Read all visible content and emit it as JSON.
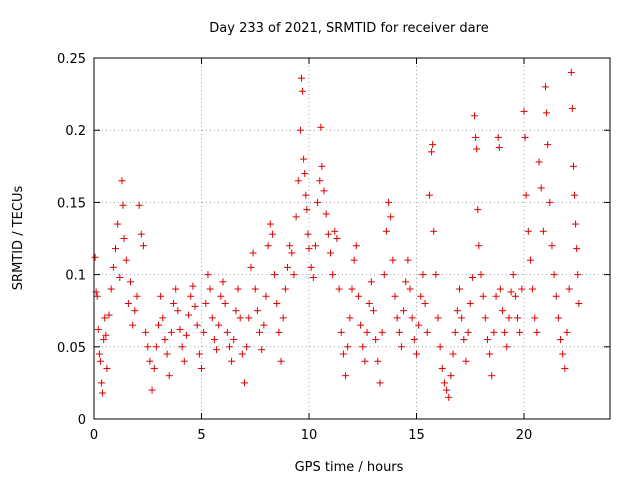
{
  "chart_data": {
    "type": "scatter",
    "title": "Day 233 of 2021, SRMTID for receiver dare",
    "xlabel": "GPS time / hours",
    "ylabel": "SRMTID / TECUs",
    "xlim": [
      0,
      24
    ],
    "ylim": [
      0,
      0.25
    ],
    "x_ticks": [
      0,
      5,
      10,
      15,
      20
    ],
    "x_tick_labels": [
      "0",
      "5",
      "10",
      "15",
      "20"
    ],
    "y_ticks": [
      0,
      0.05,
      0.1,
      0.15,
      0.2,
      0.25
    ],
    "y_tick_labels": [
      "0",
      "0.05",
      "0.1",
      "0.15",
      "0.2",
      "0.25"
    ],
    "grid": true,
    "marker": "plus",
    "series_color": "#e00000",
    "series": [
      {
        "name": "SRMTID",
        "points": [
          [
            0.05,
            0.112
          ],
          [
            0.1,
            0.088
          ],
          [
            0.15,
            0.085
          ],
          [
            0.2,
            0.062
          ],
          [
            0.25,
            0.045
          ],
          [
            0.3,
            0.04
          ],
          [
            0.35,
            0.025
          ],
          [
            0.4,
            0.018
          ],
          [
            0.45,
            0.055
          ],
          [
            0.5,
            0.07
          ],
          [
            0.55,
            0.058
          ],
          [
            0.6,
            0.035
          ],
          [
            0.7,
            0.072
          ],
          [
            0.8,
            0.09
          ],
          [
            0.9,
            0.105
          ],
          [
            1.0,
            0.118
          ],
          [
            1.1,
            0.135
          ],
          [
            1.2,
            0.098
          ],
          [
            1.3,
            0.165
          ],
          [
            1.35,
            0.148
          ],
          [
            1.4,
            0.125
          ],
          [
            1.5,
            0.11
          ],
          [
            1.6,
            0.08
          ],
          [
            1.7,
            0.095
          ],
          [
            1.8,
            0.065
          ],
          [
            1.9,
            0.075
          ],
          [
            2.0,
            0.085
          ],
          [
            2.1,
            0.148
          ],
          [
            2.2,
            0.128
          ],
          [
            2.3,
            0.12
          ],
          [
            2.4,
            0.06
          ],
          [
            2.5,
            0.05
          ],
          [
            2.6,
            0.04
          ],
          [
            2.7,
            0.02
          ],
          [
            2.8,
            0.035
          ],
          [
            2.9,
            0.05
          ],
          [
            3.0,
            0.065
          ],
          [
            3.1,
            0.085
          ],
          [
            3.2,
            0.07
          ],
          [
            3.3,
            0.055
          ],
          [
            3.4,
            0.045
          ],
          [
            3.5,
            0.03
          ],
          [
            3.6,
            0.06
          ],
          [
            3.7,
            0.08
          ],
          [
            3.8,
            0.09
          ],
          [
            3.9,
            0.075
          ],
          [
            4.0,
            0.062
          ],
          [
            4.1,
            0.05
          ],
          [
            4.2,
            0.04
          ],
          [
            4.3,
            0.058
          ],
          [
            4.4,
            0.072
          ],
          [
            4.5,
            0.085
          ],
          [
            4.6,
            0.092
          ],
          [
            4.7,
            0.078
          ],
          [
            4.8,
            0.065
          ],
          [
            4.9,
            0.045
          ],
          [
            5.0,
            0.035
          ],
          [
            5.1,
            0.06
          ],
          [
            5.2,
            0.08
          ],
          [
            5.3,
            0.1
          ],
          [
            5.4,
            0.09
          ],
          [
            5.5,
            0.07
          ],
          [
            5.6,
            0.055
          ],
          [
            5.7,
            0.048
          ],
          [
            5.8,
            0.065
          ],
          [
            5.9,
            0.085
          ],
          [
            6.0,
            0.095
          ],
          [
            6.1,
            0.08
          ],
          [
            6.2,
            0.06
          ],
          [
            6.3,
            0.05
          ],
          [
            6.4,
            0.04
          ],
          [
            6.5,
            0.055
          ],
          [
            6.6,
            0.075
          ],
          [
            6.7,
            0.09
          ],
          [
            6.8,
            0.07
          ],
          [
            6.9,
            0.045
          ],
          [
            7.0,
            0.025
          ],
          [
            7.1,
            0.05
          ],
          [
            7.2,
            0.07
          ],
          [
            7.3,
            0.105
          ],
          [
            7.4,
            0.115
          ],
          [
            7.5,
            0.09
          ],
          [
            7.6,
            0.075
          ],
          [
            7.7,
            0.06
          ],
          [
            7.8,
            0.048
          ],
          [
            7.9,
            0.065
          ],
          [
            8.0,
            0.085
          ],
          [
            8.1,
            0.12
          ],
          [
            8.2,
            0.135
          ],
          [
            8.3,
            0.128
          ],
          [
            8.4,
            0.1
          ],
          [
            8.5,
            0.08
          ],
          [
            8.6,
            0.06
          ],
          [
            8.7,
            0.04
          ],
          [
            8.8,
            0.07
          ],
          [
            8.9,
            0.09
          ],
          [
            9.0,
            0.105
          ],
          [
            9.1,
            0.12
          ],
          [
            9.2,
            0.115
          ],
          [
            9.3,
            0.1
          ],
          [
            9.4,
            0.14
          ],
          [
            9.5,
            0.165
          ],
          [
            9.6,
            0.2
          ],
          [
            9.65,
            0.236
          ],
          [
            9.7,
            0.227
          ],
          [
            9.75,
            0.18
          ],
          [
            9.8,
            0.17
          ],
          [
            9.85,
            0.155
          ],
          [
            9.9,
            0.145
          ],
          [
            9.95,
            0.128
          ],
          [
            10.0,
            0.118
          ],
          [
            10.1,
            0.105
          ],
          [
            10.2,
            0.098
          ],
          [
            10.3,
            0.12
          ],
          [
            10.4,
            0.15
          ],
          [
            10.5,
            0.165
          ],
          [
            10.55,
            0.202
          ],
          [
            10.6,
            0.175
          ],
          [
            10.7,
            0.158
          ],
          [
            10.8,
            0.142
          ],
          [
            10.9,
            0.128
          ],
          [
            11.0,
            0.115
          ],
          [
            11.1,
            0.1
          ],
          [
            11.2,
            0.13
          ],
          [
            11.3,
            0.125
          ],
          [
            11.4,
            0.09
          ],
          [
            11.5,
            0.06
          ],
          [
            11.6,
            0.045
          ],
          [
            11.7,
            0.03
          ],
          [
            11.8,
            0.05
          ],
          [
            11.9,
            0.07
          ],
          [
            12.0,
            0.09
          ],
          [
            12.1,
            0.11
          ],
          [
            12.2,
            0.12
          ],
          [
            12.3,
            0.085
          ],
          [
            12.4,
            0.065
          ],
          [
            12.5,
            0.05
          ],
          [
            12.6,
            0.04
          ],
          [
            12.7,
            0.06
          ],
          [
            12.8,
            0.08
          ],
          [
            12.9,
            0.095
          ],
          [
            13.0,
            0.075
          ],
          [
            13.1,
            0.055
          ],
          [
            13.2,
            0.04
          ],
          [
            13.3,
            0.025
          ],
          [
            13.4,
            0.06
          ],
          [
            13.5,
            0.1
          ],
          [
            13.6,
            0.13
          ],
          [
            13.7,
            0.15
          ],
          [
            13.8,
            0.14
          ],
          [
            13.9,
            0.11
          ],
          [
            14.0,
            0.085
          ],
          [
            14.1,
            0.07
          ],
          [
            14.2,
            0.06
          ],
          [
            14.3,
            0.05
          ],
          [
            14.4,
            0.075
          ],
          [
            14.5,
            0.095
          ],
          [
            14.6,
            0.11
          ],
          [
            14.7,
            0.09
          ],
          [
            14.8,
            0.07
          ],
          [
            14.9,
            0.055
          ],
          [
            15.0,
            0.045
          ],
          [
            15.1,
            0.065
          ],
          [
            15.2,
            0.085
          ],
          [
            15.3,
            0.1
          ],
          [
            15.4,
            0.08
          ],
          [
            15.5,
            0.06
          ],
          [
            15.6,
            0.155
          ],
          [
            15.7,
            0.185
          ],
          [
            15.75,
            0.19
          ],
          [
            15.8,
            0.13
          ],
          [
            15.9,
            0.1
          ],
          [
            16.0,
            0.07
          ],
          [
            16.1,
            0.05
          ],
          [
            16.2,
            0.035
          ],
          [
            16.3,
            0.025
          ],
          [
            16.4,
            0.02
          ],
          [
            16.5,
            0.015
          ],
          [
            16.6,
            0.03
          ],
          [
            16.7,
            0.045
          ],
          [
            16.8,
            0.06
          ],
          [
            16.9,
            0.075
          ],
          [
            17.0,
            0.09
          ],
          [
            17.1,
            0.07
          ],
          [
            17.2,
            0.055
          ],
          [
            17.3,
            0.04
          ],
          [
            17.4,
            0.06
          ],
          [
            17.5,
            0.08
          ],
          [
            17.6,
            0.098
          ],
          [
            17.7,
            0.21
          ],
          [
            17.75,
            0.195
          ],
          [
            17.8,
            0.187
          ],
          [
            17.85,
            0.145
          ],
          [
            17.9,
            0.12
          ],
          [
            18.0,
            0.1
          ],
          [
            18.1,
            0.085
          ],
          [
            18.2,
            0.07
          ],
          [
            18.3,
            0.055
          ],
          [
            18.4,
            0.045
          ],
          [
            18.5,
            0.03
          ],
          [
            18.6,
            0.06
          ],
          [
            18.7,
            0.085
          ],
          [
            18.8,
            0.195
          ],
          [
            18.85,
            0.188
          ],
          [
            18.9,
            0.09
          ],
          [
            19.0,
            0.075
          ],
          [
            19.1,
            0.06
          ],
          [
            19.2,
            0.05
          ],
          [
            19.3,
            0.07
          ],
          [
            19.4,
            0.088
          ],
          [
            19.5,
            0.1
          ],
          [
            19.6,
            0.085
          ],
          [
            19.7,
            0.07
          ],
          [
            19.8,
            0.06
          ],
          [
            19.9,
            0.09
          ],
          [
            20.0,
            0.213
          ],
          [
            20.05,
            0.195
          ],
          [
            20.1,
            0.155
          ],
          [
            20.2,
            0.13
          ],
          [
            20.3,
            0.11
          ],
          [
            20.4,
            0.09
          ],
          [
            20.5,
            0.07
          ],
          [
            20.6,
            0.06
          ],
          [
            20.7,
            0.178
          ],
          [
            20.8,
            0.16
          ],
          [
            20.9,
            0.13
          ],
          [
            21.0,
            0.23
          ],
          [
            21.05,
            0.212
          ],
          [
            21.1,
            0.19
          ],
          [
            21.2,
            0.15
          ],
          [
            21.3,
            0.12
          ],
          [
            21.4,
            0.1
          ],
          [
            21.5,
            0.085
          ],
          [
            21.6,
            0.07
          ],
          [
            21.7,
            0.055
          ],
          [
            21.8,
            0.045
          ],
          [
            21.9,
            0.035
          ],
          [
            22.0,
            0.06
          ],
          [
            22.1,
            0.09
          ],
          [
            22.2,
            0.24
          ],
          [
            22.25,
            0.215
          ],
          [
            22.3,
            0.175
          ],
          [
            22.35,
            0.155
          ],
          [
            22.4,
            0.135
          ],
          [
            22.45,
            0.118
          ],
          [
            22.5,
            0.1
          ],
          [
            22.55,
            0.08
          ]
        ]
      }
    ]
  }
}
